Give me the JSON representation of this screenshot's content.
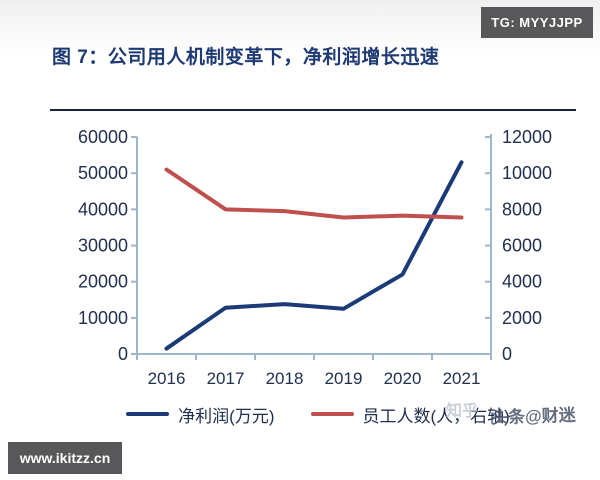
{
  "header": {
    "title": "图 7：公司用人机制变革下，净利润增长迅速"
  },
  "badges": {
    "telegram": "TG: MYYJJPP",
    "site": "www.ikitzz.cn"
  },
  "watermark": {
    "faint_text": "知乎",
    "main_text": "头条@财迷"
  },
  "colors": {
    "title": "#1e3a74",
    "divider": "#1b2240",
    "axis_line": "#9fb6cc",
    "axis_text": "#22304f",
    "badge_bg": "#58585a"
  },
  "chart_data": {
    "type": "line",
    "categories": [
      "2016",
      "2017",
      "2018",
      "2019",
      "2020",
      "2021"
    ],
    "series": [
      {
        "name": "净利润(万元)",
        "axis": "left",
        "color": "#1b3a78",
        "values": [
          1500,
          12800,
          13800,
          12500,
          22000,
          53000
        ]
      },
      {
        "name": "员工人数(人，右轴)",
        "axis": "right",
        "color": "#c0504d",
        "values": [
          10200,
          8000,
          7900,
          7550,
          7650,
          7550
        ]
      }
    ],
    "left_axis": {
      "min": 0,
      "max": 60000,
      "step": 10000
    },
    "right_axis": {
      "min": 0,
      "max": 12000,
      "step": 2000
    },
    "grid": false,
    "legend_position": "bottom"
  }
}
